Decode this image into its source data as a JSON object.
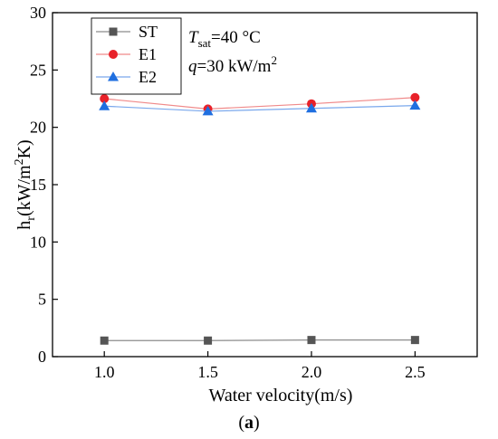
{
  "chart_data": {
    "type": "line",
    "x": [
      1.0,
      1.5,
      2.0,
      2.5
    ],
    "series": [
      {
        "name": "ST",
        "values": [
          1.4,
          1.4,
          1.45,
          1.45
        ],
        "color": "#555555",
        "line_color": "#8c8c8c",
        "marker": "square"
      },
      {
        "name": "E1",
        "values": [
          22.5,
          21.6,
          22.05,
          22.6
        ],
        "color": "#e8222a",
        "line_color": "#f08a8a",
        "marker": "circle"
      },
      {
        "name": "E2",
        "values": [
          21.85,
          21.4,
          21.65,
          21.9
        ],
        "color": "#1f6fe0",
        "line_color": "#7aa8ec",
        "marker": "triangle"
      }
    ],
    "xlim": [
      0.75,
      2.8
    ],
    "ylim": [
      0,
      30
    ],
    "xticks": [
      1.0,
      1.5,
      2.0,
      2.5
    ],
    "xtick_labels": [
      "1.0",
      "1.5",
      "2.0",
      "2.5"
    ],
    "yticks": [
      0,
      5,
      10,
      15,
      20,
      25,
      30
    ],
    "ytick_labels": [
      "0",
      "5",
      "10",
      "15",
      "20",
      "25",
      "30"
    ],
    "xlabel": "Water velocity(m/s)",
    "ylabel": {
      "base": "h",
      "sub": "r",
      "pre": "(kW/m",
      "sup": "2",
      "post": "K)"
    },
    "grid": false,
    "legend_position": "top-left"
  },
  "annotations": {
    "tsat": {
      "italic": "T",
      "sub": "sat",
      "rest": "=40 °C"
    },
    "q": {
      "italic": "q",
      "rest": "=30 kW/m",
      "sup": "2"
    }
  },
  "caption": {
    "open": "(",
    "letter": "a",
    "close": ")"
  }
}
